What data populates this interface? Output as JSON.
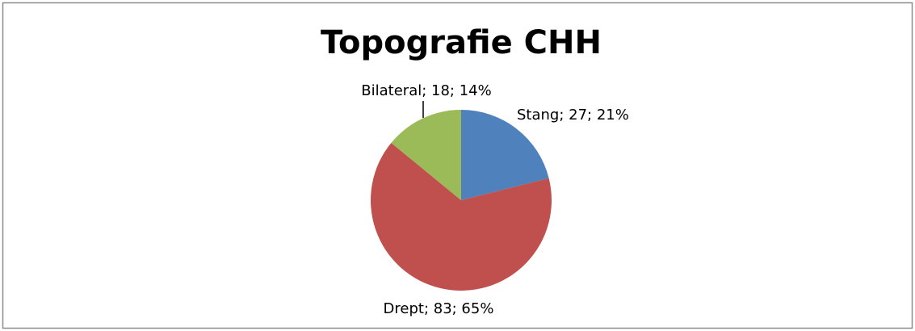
{
  "chart_data": {
    "type": "pie",
    "title": "Topografie CHH",
    "values": [
      27,
      83,
      18
    ],
    "value_labels": [
      "Stang; 27; 21%",
      "Drept; 83; 65%",
      "Bilateral; 18; 14%"
    ],
    "colors": [
      "#4f81bd",
      "#c0504d",
      "#9bbb59"
    ]
  }
}
